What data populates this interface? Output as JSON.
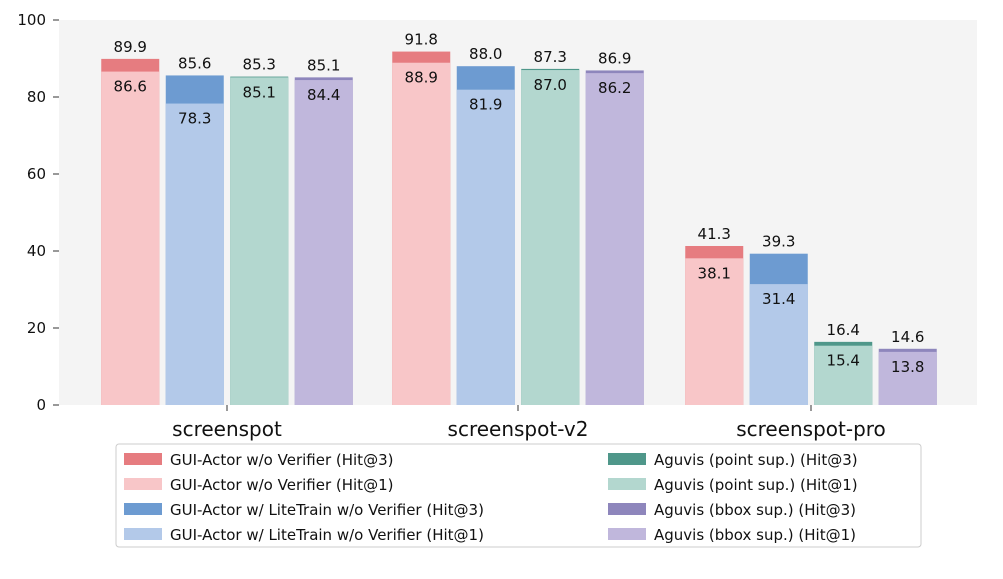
{
  "chart_data": {
    "type": "bar",
    "categories": [
      "screenspot",
      "screenspot-v2",
      "screenspot-pro"
    ],
    "ylim": [
      0,
      100
    ],
    "yticks": [
      0,
      20,
      40,
      60,
      80,
      100
    ],
    "grid": false,
    "legend_position": "bottom",
    "series": [
      {
        "name": "GUI-Actor w/o Verifier (Hit@3)",
        "values": [
          89.9,
          91.8,
          41.3
        ],
        "color": "#e67c80",
        "group": "GUI-Actor w/o Verifier",
        "kind": "hit3"
      },
      {
        "name": "GUI-Actor w/o Verifier (Hit@1)",
        "values": [
          86.6,
          88.9,
          38.1
        ],
        "color": "#f8c6c8",
        "group": "GUI-Actor w/o Verifier",
        "kind": "hit1"
      },
      {
        "name": "GUI-Actor w/ LiteTrain w/o Verifier (Hit@3)",
        "values": [
          85.6,
          88.0,
          39.3
        ],
        "color": "#6d9bd1",
        "group": "GUI-Actor w/ LiteTrain w/o Verifier",
        "kind": "hit3"
      },
      {
        "name": "GUI-Actor w/ LiteTrain w/o Verifier (Hit@1)",
        "values": [
          78.3,
          81.9,
          31.4
        ],
        "color": "#b3c9e9",
        "group": "GUI-Actor w/ LiteTrain w/o Verifier",
        "kind": "hit1"
      },
      {
        "name": "Aguvis (point sup.) (Hit@3)",
        "values": [
          85.3,
          87.3,
          16.4
        ],
        "color": "#4f978a",
        "group": "Aguvis (point sup.)",
        "kind": "hit3"
      },
      {
        "name": "Aguvis (point sup.) (Hit@1)",
        "values": [
          85.1,
          87.0,
          15.4
        ],
        "color": "#b3d7cf",
        "group": "Aguvis (point sup.)",
        "kind": "hit1"
      },
      {
        "name": "Aguvis (bbox sup.) (Hit@3)",
        "values": [
          85.1,
          86.9,
          14.6
        ],
        "color": "#8e86bc",
        "group": "Aguvis (bbox sup.)",
        "kind": "hit3"
      },
      {
        "name": "Aguvis (bbox sup.) (Hit@1)",
        "values": [
          84.4,
          86.2,
          13.8
        ],
        "color": "#c0b7dc",
        "group": "Aguvis (bbox sup.)",
        "kind": "hit1"
      }
    ],
    "value_labels": {
      "hit3": [
        [
          "89.9",
          "85.6",
          "85.3",
          "85.1"
        ],
        [
          "91.8",
          "88.0",
          "87.3",
          "86.9"
        ],
        [
          "41.3",
          "39.3",
          "16.4",
          "14.6"
        ]
      ],
      "hit1": [
        [
          "86.6",
          "78.3",
          "85.1",
          "84.4"
        ],
        [
          "88.9",
          "81.9",
          "87.0",
          "86.2"
        ],
        [
          "38.1",
          "31.4",
          "15.4",
          "13.8"
        ]
      ]
    },
    "legend": [
      {
        "label": "GUI-Actor w/o Verifier (Hit@3)",
        "color": "#e67c80"
      },
      {
        "label": "GUI-Actor w/o Verifier (Hit@1)",
        "color": "#f8c6c8"
      },
      {
        "label": "GUI-Actor w/ LiteTrain w/o Verifier (Hit@3)",
        "color": "#6d9bd1"
      },
      {
        "label": "GUI-Actor w/ LiteTrain w/o Verifier (Hit@1)",
        "color": "#b3c9e9"
      },
      {
        "label": "Aguvis (point sup.) (Hit@3)",
        "color": "#4f978a"
      },
      {
        "label": "Aguvis (point sup.) (Hit@1)",
        "color": "#b3d7cf"
      },
      {
        "label": "Aguvis (bbox sup.) (Hit@3)",
        "color": "#8e86bc"
      },
      {
        "label": "Aguvis (bbox sup.) (Hit@1)",
        "color": "#c0b7dc"
      }
    ],
    "colors": {
      "plot_background": "#f4f4f4"
    }
  }
}
